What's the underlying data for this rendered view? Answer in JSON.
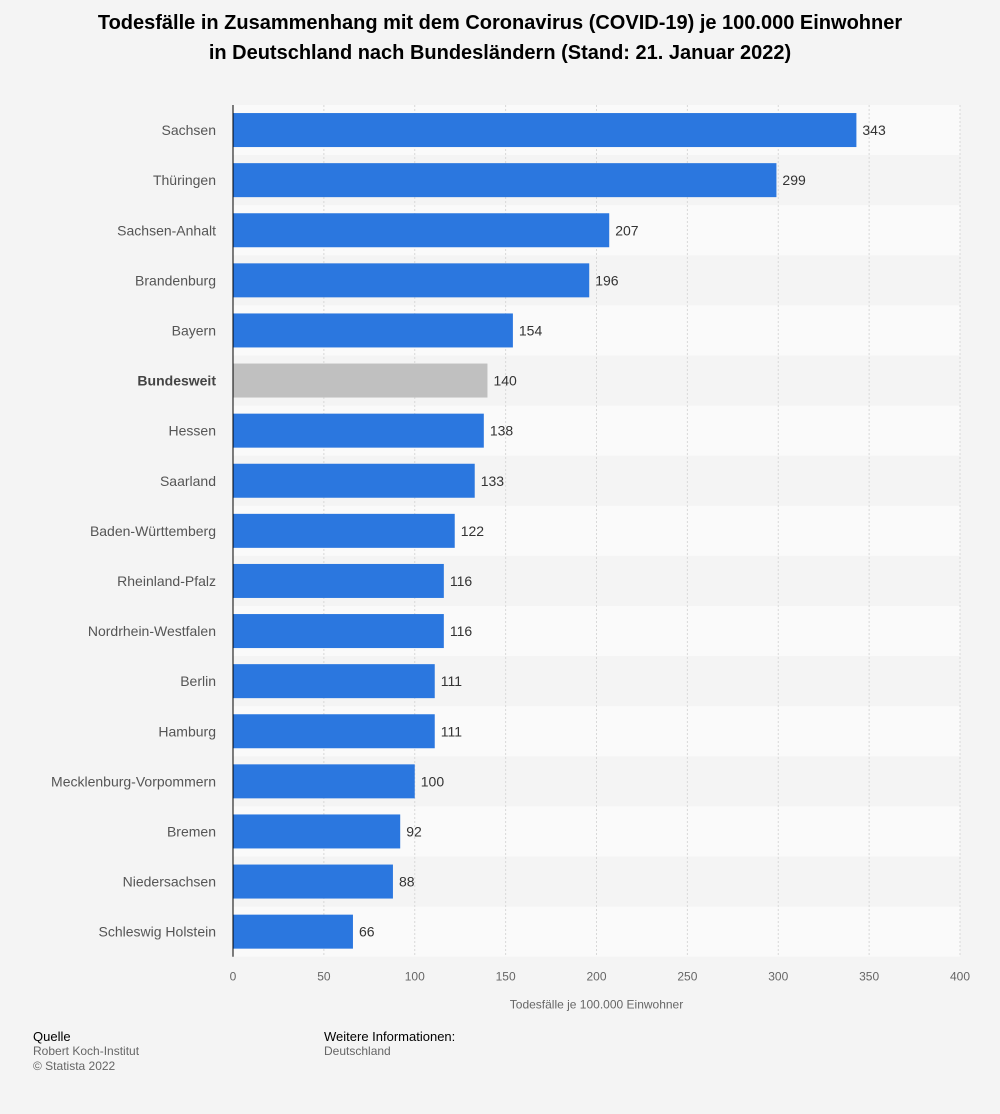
{
  "chart_data": {
    "type": "bar",
    "orientation": "horizontal",
    "title": [
      "Todesfälle in Zusammenhang mit dem Coronavirus (COVID-19) je 100.000 Einwohner",
      "in Deutschland nach Bundesländern (Stand: 21. Januar 2022)"
    ],
    "categories": [
      "Sachsen",
      "Thüringen",
      "Sachsen-Anhalt",
      "Brandenburg",
      "Bayern",
      "Bundesweit",
      "Hessen",
      "Saarland",
      "Baden-Württemberg",
      "Rheinland-Pfalz",
      "Nordrhein-Westfalen",
      "Berlin",
      "Hamburg",
      "Mecklenburg-Vorpommern",
      "Bremen",
      "Niedersachsen",
      "Schleswig Holstein"
    ],
    "values": [
      343,
      299,
      207,
      196,
      154,
      140,
      138,
      133,
      122,
      116,
      116,
      111,
      111,
      100,
      92,
      88,
      66
    ],
    "highlight_category": "Bundesweit",
    "xlabel": "Todesfälle je 100.000 Einwohner",
    "ylabel": "",
    "xlim": [
      0,
      400
    ],
    "xticks": [
      0,
      50,
      100,
      150,
      200,
      250,
      300,
      350,
      400
    ],
    "grid": true,
    "colors": {
      "bar": "#2b77df",
      "highlight": "#c0c0c0",
      "row_alt": "#f4f4f4",
      "row": "#fafafa",
      "grid": "#d8d8d8",
      "axis": "#000000"
    }
  },
  "footer": {
    "source_label": "Quelle",
    "source_name": "Robert Koch-Institut",
    "copyright": "© Statista 2022",
    "info_label": "Weitere Informationen:",
    "info_value": "Deutschland"
  }
}
